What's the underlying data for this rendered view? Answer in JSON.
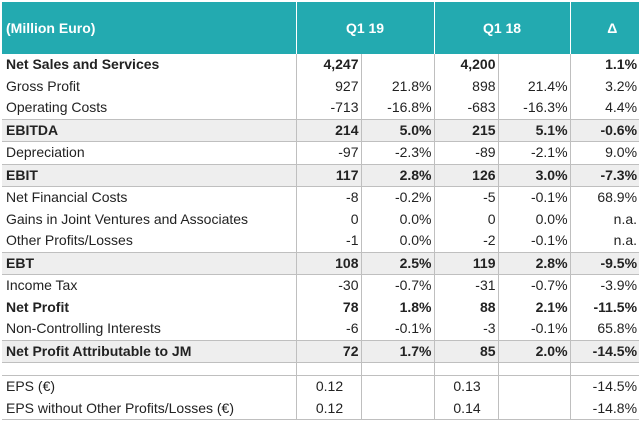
{
  "header": {
    "label": "(Million Euro)",
    "q1_19": "Q1 19",
    "q1_18": "Q1 18",
    "delta": "Δ"
  },
  "rows": [
    {
      "label": "Net Sales and Services",
      "v19": "4,247",
      "p19": "",
      "v18": "4,200",
      "p18": "",
      "d": "1.1%"
    },
    {
      "label": "Gross Profit",
      "v19": "927",
      "p19": "21.8%",
      "v18": "898",
      "p18": "21.4%",
      "d": "3.2%"
    },
    {
      "label": "Operating Costs",
      "v19": "-713",
      "p19": "-16.8%",
      "v18": "-683",
      "p18": "-16.3%",
      "d": "4.4%"
    },
    {
      "label": "EBITDA",
      "v19": "214",
      "p19": "5.0%",
      "v18": "215",
      "p18": "5.1%",
      "d": "-0.6%"
    },
    {
      "label": "Depreciation",
      "v19": "-97",
      "p19": "-2.3%",
      "v18": "-89",
      "p18": "-2.1%",
      "d": "9.0%"
    },
    {
      "label": "EBIT",
      "v19": "117",
      "p19": "2.8%",
      "v18": "126",
      "p18": "3.0%",
      "d": "-7.3%"
    },
    {
      "label": "Net Financial Costs",
      "v19": "-8",
      "p19": "-0.2%",
      "v18": "-5",
      "p18": "-0.1%",
      "d": "68.9%"
    },
    {
      "label": "Gains in Joint Ventures and Associates",
      "v19": "0",
      "p19": "0.0%",
      "v18": "0",
      "p18": "0.0%",
      "d": "n.a."
    },
    {
      "label": "Other Profits/Losses",
      "v19": "-1",
      "p19": "0.0%",
      "v18": "-2",
      "p18": "-0.1%",
      "d": "n.a."
    },
    {
      "label": "EBT",
      "v19": "108",
      "p19": "2.5%",
      "v18": "119",
      "p18": "2.8%",
      "d": "-9.5%"
    },
    {
      "label": "Income Tax",
      "v19": "-30",
      "p19": "-0.7%",
      "v18": "-31",
      "p18": "-0.7%",
      "d": "-3.9%"
    },
    {
      "label": "Net Profit",
      "v19": "78",
      "p19": "1.8%",
      "v18": "88",
      "p18": "2.1%",
      "d": "-11.5%"
    },
    {
      "label": "Non-Controlling Interests",
      "v19": "-6",
      "p19": "-0.1%",
      "v18": "-3",
      "p18": "-0.1%",
      "d": "65.8%"
    },
    {
      "label": "Net Profit Attributable to JM",
      "v19": "72",
      "p19": "1.7%",
      "v18": "85",
      "p18": "2.0%",
      "d": "-14.5%"
    },
    {
      "label": "EPS (€)",
      "v19": "0.12",
      "p19": "",
      "v18": "0.13",
      "p18": "",
      "d": "-14.5%"
    },
    {
      "label": "EPS without Other Profits/Losses (€)",
      "v19": "0.12",
      "p19": "",
      "v18": "0.14",
      "p18": "",
      "d": "-14.8%"
    }
  ]
}
